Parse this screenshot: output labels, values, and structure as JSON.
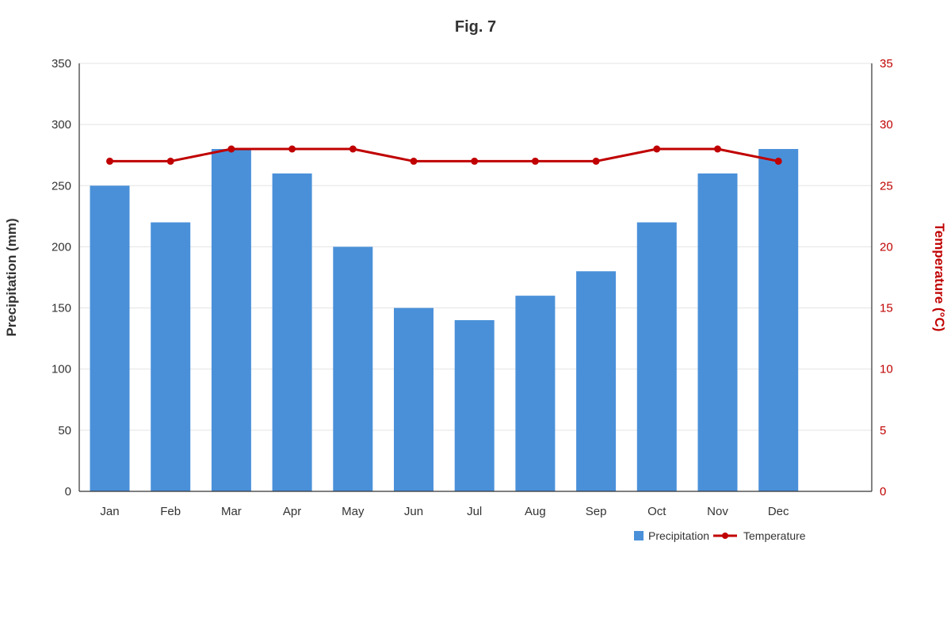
{
  "chart_data": {
    "type": "bar",
    "title": "Fig. 7",
    "categories": [
      "Jan",
      "Feb",
      "Mar",
      "Apr",
      "May",
      "Jun",
      "Jul",
      "Aug",
      "Sep",
      "Oct",
      "Nov",
      "Dec"
    ],
    "series": [
      {
        "name": "Precipitation",
        "type": "bar",
        "axis": "left",
        "color": "#4a90d9",
        "values": [
          250,
          220,
          280,
          260,
          200,
          150,
          140,
          160,
          180,
          220,
          260,
          280
        ]
      },
      {
        "name": "Temperature",
        "type": "line",
        "axis": "right",
        "color": "#c00000",
        "values": [
          27,
          27,
          28,
          28,
          28,
          27,
          27,
          27,
          27,
          28,
          28,
          27
        ]
      }
    ],
    "ylabel": "Precipitation (mm)",
    "ylim": [
      0,
      350
    ],
    "yticks": [
      "0",
      "50",
      "100",
      "150",
      "200",
      "250",
      "300",
      "350"
    ],
    "y2label": "Temperature (°C)",
    "y2lim": [
      0,
      35
    ],
    "y2ticks": [
      "0",
      "5",
      "10",
      "15",
      "20",
      "25",
      "30",
      "35"
    ],
    "grid": true,
    "legend": "bottom-right"
  }
}
